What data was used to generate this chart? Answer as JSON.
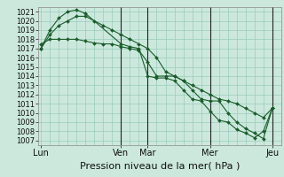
{
  "bg_color": "#cce8dd",
  "grid_color": "#99ccbb",
  "line_color": "#1a5c2a",
  "marker_color": "#1a5c2a",
  "ylabel_ticks": [
    1007,
    1008,
    1009,
    1010,
    1011,
    1012,
    1013,
    1014,
    1015,
    1016,
    1017,
    1018,
    1019,
    1020,
    1021
  ],
  "ylim": [
    1006.5,
    1021.5
  ],
  "xlabel": "Pression niveau de la mer( hPa )",
  "x_tick_labels": [
    "Lun",
    "Ven",
    "Mar",
    "Mer",
    "Jeu"
  ],
  "x_tick_positions": [
    0,
    9,
    12,
    19,
    26
  ],
  "xlim": [
    -0.3,
    27.0
  ],
  "series1_x": [
    0,
    1,
    2,
    3,
    4,
    5,
    9,
    10,
    11,
    12,
    13,
    14,
    15,
    16,
    17,
    18,
    19,
    20,
    21,
    22,
    23,
    24,
    25,
    26
  ],
  "series1_y": [
    1017.0,
    1019.0,
    1020.3,
    1021.0,
    1021.2,
    1020.8,
    1017.5,
    1017.2,
    1017.0,
    1014.0,
    1013.8,
    1013.8,
    1013.5,
    1012.5,
    1011.5,
    1011.3,
    1010.2,
    1009.2,
    1009.0,
    1008.2,
    1007.8,
    1007.3,
    1008.0,
    1010.5
  ],
  "series2_x": [
    0,
    1,
    2,
    3,
    4,
    5,
    6,
    7,
    8,
    9,
    10,
    11,
    12,
    13,
    14,
    15,
    16,
    17,
    18,
    19,
    20,
    21,
    22,
    23,
    24,
    25,
    26
  ],
  "series2_y": [
    1017.5,
    1018.0,
    1018.0,
    1018.0,
    1018.0,
    1017.8,
    1017.6,
    1017.5,
    1017.5,
    1017.2,
    1017.0,
    1016.8,
    1015.5,
    1014.0,
    1014.0,
    1014.0,
    1013.5,
    1012.5,
    1011.5,
    1011.3,
    1011.3,
    1010.0,
    1009.0,
    1008.3,
    1007.8,
    1007.2,
    1010.5
  ],
  "series3_x": [
    0,
    1,
    2,
    3,
    4,
    5,
    6,
    7,
    8,
    9,
    10,
    11,
    12,
    13,
    14,
    15,
    16,
    17,
    18,
    19,
    20,
    21,
    22,
    23,
    24,
    25,
    26
  ],
  "series3_y": [
    1017.0,
    1018.5,
    1019.5,
    1020.0,
    1020.5,
    1020.5,
    1020.0,
    1019.5,
    1019.0,
    1018.5,
    1018.0,
    1017.5,
    1017.0,
    1016.0,
    1014.5,
    1014.0,
    1013.5,
    1013.0,
    1012.5,
    1012.0,
    1011.5,
    1011.3,
    1011.0,
    1010.5,
    1010.0,
    1009.5,
    1010.5
  ],
  "vlines_x": [
    9,
    12,
    19,
    26
  ],
  "fontsize_xlabel": 8,
  "fontsize_ytick": 6,
  "fontsize_xtick": 7
}
